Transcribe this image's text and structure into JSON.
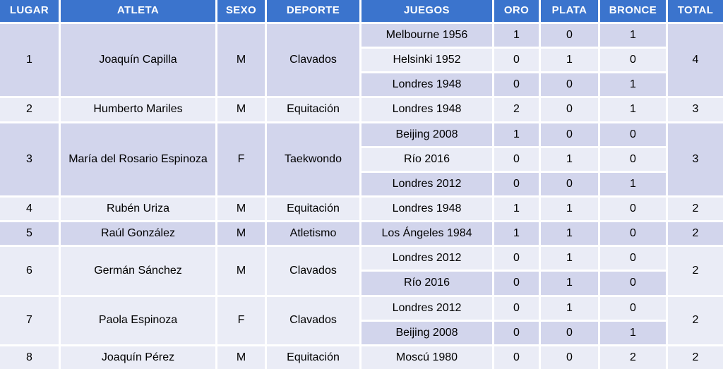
{
  "colors": {
    "header_bg": "#3b74cd",
    "header_text": "#ffffff",
    "row_dark": "#d2d5ec",
    "row_light": "#eaecf6",
    "grid_lines": "#ffffff",
    "body_text": "#000000"
  },
  "table": {
    "columns": [
      {
        "key": "lugar",
        "label": "LUGAR"
      },
      {
        "key": "atleta",
        "label": "ATLETA"
      },
      {
        "key": "sexo",
        "label": "SEXO"
      },
      {
        "key": "deporte",
        "label": "DEPORTE"
      },
      {
        "key": "juegos",
        "label": "JUEGOS"
      },
      {
        "key": "oro",
        "label": "ORO"
      },
      {
        "key": "plata",
        "label": "PLATA"
      },
      {
        "key": "bronce",
        "label": "BRONCE"
      },
      {
        "key": "total",
        "label": "TOTAL"
      }
    ],
    "athletes": [
      {
        "lugar": "1",
        "atleta": "Joaquín Capilla",
        "sexo": "M",
        "deporte": "Clavados",
        "total": "4",
        "games": [
          {
            "juegos": "Melbourne 1956",
            "oro": "1",
            "plata": "0",
            "bronce": "1"
          },
          {
            "juegos": "Helsinki 1952",
            "oro": "0",
            "plata": "1",
            "bronce": "0"
          },
          {
            "juegos": "Londres 1948",
            "oro": "0",
            "plata": "0",
            "bronce": "1"
          }
        ]
      },
      {
        "lugar": "2",
        "atleta": "Humberto Mariles",
        "sexo": "M",
        "deporte": "Equitación",
        "total": "3",
        "games": [
          {
            "juegos": "Londres 1948",
            "oro": "2",
            "plata": "0",
            "bronce": "1"
          }
        ]
      },
      {
        "lugar": "3",
        "atleta": "María del Rosario Espinoza",
        "sexo": "F",
        "deporte": "Taekwondo",
        "total": "3",
        "games": [
          {
            "juegos": "Beijing 2008",
            "oro": "1",
            "plata": "0",
            "bronce": "0"
          },
          {
            "juegos": "Río 2016",
            "oro": "0",
            "plata": "1",
            "bronce": "0"
          },
          {
            "juegos": "Londres 2012",
            "oro": "0",
            "plata": "0",
            "bronce": "1"
          }
        ]
      },
      {
        "lugar": "4",
        "atleta": "Rubén Uriza",
        "sexo": "M",
        "deporte": "Equitación",
        "total": "2",
        "games": [
          {
            "juegos": "Londres 1948",
            "oro": "1",
            "plata": "1",
            "bronce": "0"
          }
        ]
      },
      {
        "lugar": "5",
        "atleta": "Raúl González",
        "sexo": "M",
        "deporte": "Atletismo",
        "total": "2",
        "games": [
          {
            "juegos": "Los Ángeles 1984",
            "oro": "1",
            "plata": "1",
            "bronce": "0"
          }
        ]
      },
      {
        "lugar": "6",
        "atleta": "Germán Sánchez",
        "sexo": "M",
        "deporte": "Clavados",
        "total": "2",
        "games": [
          {
            "juegos": "Londres 2012",
            "oro": "0",
            "plata": "1",
            "bronce": "0"
          },
          {
            "juegos": "Río 2016",
            "oro": "0",
            "plata": "1",
            "bronce": "0"
          }
        ]
      },
      {
        "lugar": "7",
        "atleta": "Paola Espinoza",
        "sexo": "F",
        "deporte": "Clavados",
        "total": "2",
        "games": [
          {
            "juegos": "Londres 2012",
            "oro": "0",
            "plata": "1",
            "bronce": "0"
          },
          {
            "juegos": "Beijing 2008",
            "oro": "0",
            "plata": "0",
            "bronce": "1"
          }
        ]
      },
      {
        "lugar": "8",
        "atleta": "Joaquín Pérez",
        "sexo": "M",
        "deporte": "Equitación",
        "total": "2",
        "games": [
          {
            "juegos": "Moscú 1980",
            "oro": "0",
            "plata": "0",
            "bronce": "2"
          }
        ]
      }
    ]
  },
  "chart_data": {
    "type": "table",
    "title": "",
    "columns": [
      "LUGAR",
      "ATLETA",
      "SEXO",
      "DEPORTE",
      "JUEGOS",
      "ORO",
      "PLATA",
      "BRONCE",
      "TOTAL"
    ],
    "rows": [
      [
        "1",
        "Joaquín Capilla",
        "M",
        "Clavados",
        "Melbourne 1956",
        1,
        0,
        1,
        4
      ],
      [
        "1",
        "Joaquín Capilla",
        "M",
        "Clavados",
        "Helsinki 1952",
        0,
        1,
        0,
        4
      ],
      [
        "1",
        "Joaquín Capilla",
        "M",
        "Clavados",
        "Londres 1948",
        0,
        0,
        1,
        4
      ],
      [
        "2",
        "Humberto Mariles",
        "M",
        "Equitación",
        "Londres 1948",
        2,
        0,
        1,
        3
      ],
      [
        "3",
        "María del Rosario Espinoza",
        "F",
        "Taekwondo",
        "Beijing 2008",
        1,
        0,
        0,
        3
      ],
      [
        "3",
        "María del Rosario Espinoza",
        "F",
        "Taekwondo",
        "Río 2016",
        0,
        1,
        0,
        3
      ],
      [
        "3",
        "María del Rosario Espinoza",
        "F",
        "Taekwondo",
        "Londres 2012",
        0,
        0,
        1,
        3
      ],
      [
        "4",
        "Rubén Uriza",
        "M",
        "Equitación",
        "Londres 1948",
        1,
        1,
        0,
        2
      ],
      [
        "5",
        "Raúl González",
        "M",
        "Atletismo",
        "Los Ángeles 1984",
        1,
        1,
        0,
        2
      ],
      [
        "6",
        "Germán Sánchez",
        "M",
        "Clavados",
        "Londres 2012",
        0,
        1,
        0,
        2
      ],
      [
        "6",
        "Germán Sánchez",
        "M",
        "Clavados",
        "Río 2016",
        0,
        1,
        0,
        2
      ],
      [
        "7",
        "Paola Espinoza",
        "F",
        "Clavados",
        "Londres 2012",
        0,
        1,
        0,
        2
      ],
      [
        "7",
        "Paola Espinoza",
        "F",
        "Clavados",
        "Beijing 2008",
        0,
        0,
        1,
        2
      ],
      [
        "8",
        "Joaquín Pérez",
        "M",
        "Equitación",
        "Moscú 1980",
        0,
        0,
        2,
        2
      ]
    ],
    "layout_hints": {
      "merged_columns": [
        "LUGAR",
        "ATLETA",
        "SEXO",
        "DEPORTE",
        "TOTAL"
      ],
      "striping": "global row parity: odd rows dark #d2d5ec, even rows light #eaecf6; merged cells take color of first row in their span",
      "header_style": "blue #3b74cd, white bold uppercase text",
      "grid": "3px white separators between all cells, no outer border"
    }
  }
}
